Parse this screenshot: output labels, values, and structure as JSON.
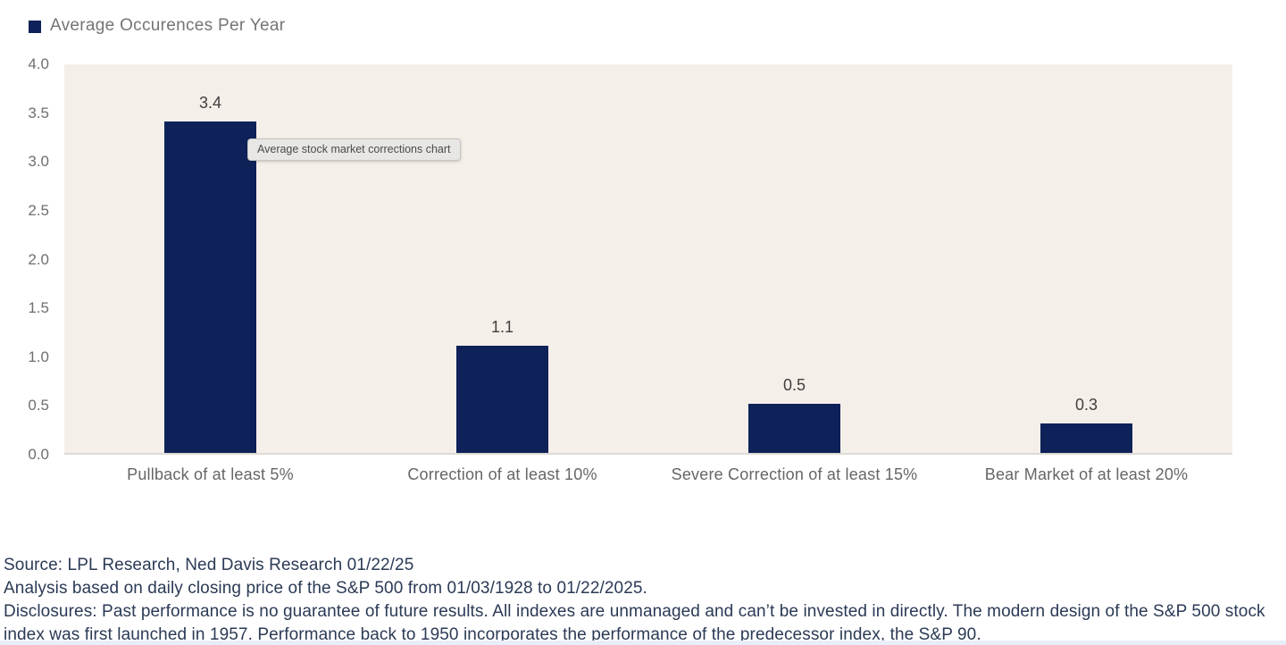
{
  "page": {
    "background": "#ffffff",
    "bottom_strip_color": "#e8eef9"
  },
  "legend": {
    "swatch_color": "#0e2259",
    "label": "Average Occurences Per Year",
    "position": "top-left"
  },
  "tooltip": {
    "text": "Average stock market corrections chart"
  },
  "chart_data": {
    "type": "bar",
    "title": "",
    "xlabel": "",
    "ylabel": "",
    "series_name": "Average Occurences Per Year",
    "categories": [
      "Pullback of at least 5%",
      "Correction of at least 10%",
      "Severe Correction of at least 15%",
      "Bear Market of at least 20%"
    ],
    "values": [
      3.4,
      1.1,
      0.5,
      0.3
    ],
    "data_labels": [
      "3.4",
      "1.1",
      "0.5",
      "0.3"
    ],
    "ylim": [
      0,
      4
    ],
    "yticks": [
      "4.0",
      "3.5",
      "3.0",
      "2.5",
      "2.0",
      "1.5",
      "1.0",
      "0.5",
      "0.0"
    ],
    "grid": false,
    "legend_position": "top-left",
    "bar_color": "#0e2259",
    "plot_background": "#f5efe9",
    "label_color": "#404040",
    "axis_label_color": "#6f6f6f"
  },
  "footer": {
    "lines": [
      "Source: LPL Research, Ned Davis Research 01/22/25",
      "Analysis based on daily closing price of the S&P 500 from 01/03/1928 to 01/22/2025.",
      "Disclosures: Past performance is no guarantee of future results. All indexes are unmanaged and can’t be invested in directly. The modern design of the S&P 500 stock index was first launched in 1957. Performance back to 1950 incorporates the performance of the predecessor index, the S&P 90."
    ]
  }
}
